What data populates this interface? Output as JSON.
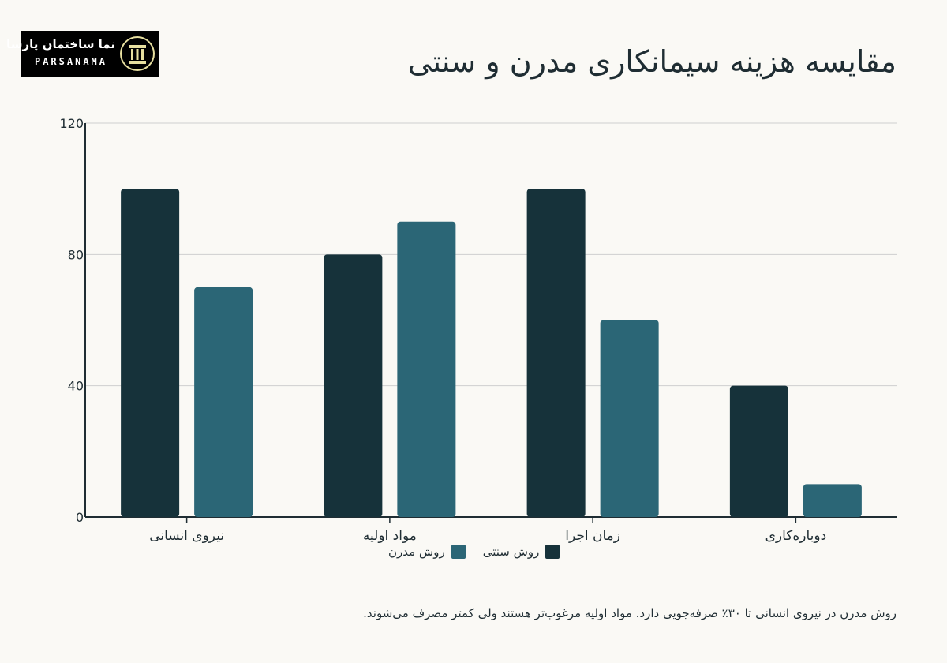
{
  "logo": {
    "name_fa": "نما ساختمان پارسا",
    "name_en": "PARSANAMA",
    "emblem_icon": "column-pillar-icon",
    "accent_color": "#e8e0a0"
  },
  "title": "مقایسه هزینه سیمانکاری مدرن و سنتی",
  "chart_data": {
    "type": "bar",
    "categories": [
      "نیروی انسانی",
      "مواد اولیه",
      "زمان اجرا",
      "دوباره‌کاری"
    ],
    "series": [
      {
        "name": "روش سنتی",
        "color": "#16323a",
        "values": [
          100,
          80,
          100,
          40
        ]
      },
      {
        "name": "روش مدرن",
        "color": "#2b6676",
        "values": [
          70,
          90,
          60,
          10
        ]
      }
    ],
    "yticks": [
      "0",
      "40",
      "80",
      "120"
    ],
    "ylim": [
      0,
      120
    ],
    "grid": true,
    "legend_position": "bottom"
  },
  "caption": "روش مدرن در نیروی انسانی تا ۳۰٪ صرفه‌جویی دارد. مواد اولیه مرغوب‌تر هستند ولی کمتر مصرف می‌شوند."
}
